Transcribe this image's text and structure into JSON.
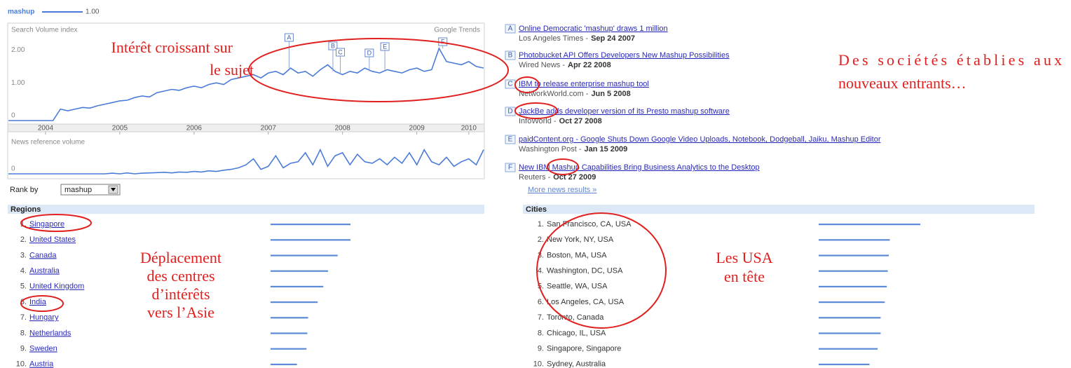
{
  "legend_value": "1.00",
  "chart_data": [
    {
      "type": "line",
      "title": "Search Volume index",
      "source": "Google Trends",
      "x": [
        2004,
        2004.1,
        2004.2,
        2004.3,
        2004.4,
        2004.5,
        2004.6,
        2004.7,
        2004.8,
        2004.9,
        2005,
        2005.1,
        2005.2,
        2005.3,
        2005.4,
        2005.5,
        2005.6,
        2005.7,
        2005.8,
        2005.9,
        2006,
        2006.1,
        2006.2,
        2006.3,
        2006.4,
        2006.5,
        2006.6,
        2006.7,
        2006.8,
        2006.9,
        2007,
        2007.1,
        2007.2,
        2007.3,
        2007.4,
        2007.5,
        2007.6,
        2007.7,
        2007.8,
        2007.9,
        2008,
        2008.1,
        2008.2,
        2008.3,
        2008.4,
        2008.5,
        2008.6,
        2008.7,
        2008.8,
        2008.9,
        2009,
        2009.1,
        2009.2,
        2009.3,
        2009.4,
        2009.5,
        2009.6,
        2009.7,
        2009.8,
        2009.9,
        2010,
        2010.1,
        2010.2,
        2010.3,
        2010.4
      ],
      "series": [
        {
          "name": "mashup",
          "color": "#4a7bd8",
          "values": [
            0,
            0,
            0,
            0,
            0,
            0,
            0,
            0.35,
            0.3,
            0.35,
            0.4,
            0.38,
            0.45,
            0.5,
            0.55,
            0.6,
            0.62,
            0.7,
            0.75,
            0.72,
            0.85,
            0.9,
            0.95,
            0.92,
            1.0,
            1.05,
            1.0,
            1.1,
            1.15,
            1.1,
            1.25,
            1.3,
            1.35,
            1.4,
            1.3,
            1.45,
            1.5,
            1.4,
            1.6,
            1.45,
            1.5,
            1.35,
            1.55,
            1.7,
            1.5,
            1.4,
            1.5,
            1.45,
            1.6,
            1.5,
            1.45,
            1.55,
            1.5,
            1.45,
            1.55,
            1.6,
            1.5,
            1.55,
            2.2,
            1.8,
            1.75,
            1.7,
            1.8,
            1.65,
            1.6
          ]
        }
      ],
      "xlim": [
        2004,
        2010.4
      ],
      "xticks": [
        {
          "value": 2004.5,
          "label": "2004"
        },
        {
          "value": 2005.5,
          "label": "2005"
        },
        {
          "value": 2006.5,
          "label": "2006"
        },
        {
          "value": 2007.5,
          "label": "2007"
        },
        {
          "value": 2008.5,
          "label": "2008"
        },
        {
          "value": 2009.5,
          "label": "2009"
        },
        {
          "value": 2010.2,
          "label": "2010"
        }
      ],
      "ylim": [
        0,
        2.5
      ],
      "yticks": [
        0,
        {
          "value": 1,
          "label": "1.00"
        },
        {
          "value": 2,
          "label": "2.00"
        }
      ],
      "grid": false,
      "markers": [
        {
          "label": "A",
          "x": 2007.78
        },
        {
          "label": "B",
          "x": 2008.37
        },
        {
          "label": "C",
          "x": 2008.47
        },
        {
          "label": "D",
          "x": 2008.86
        },
        {
          "label": "E",
          "x": 2009.07
        },
        {
          "label": "F",
          "x": 2009.85
        }
      ]
    },
    {
      "type": "line",
      "title": "News reference volume",
      "x": [
        2004,
        2004.1,
        2004.2,
        2004.3,
        2004.4,
        2004.5,
        2004.6,
        2004.7,
        2004.8,
        2004.9,
        2005,
        2005.1,
        2005.2,
        2005.3,
        2005.4,
        2005.5,
        2005.6,
        2005.7,
        2005.8,
        2005.9,
        2006,
        2006.1,
        2006.2,
        2006.3,
        2006.4,
        2006.5,
        2006.6,
        2006.7,
        2006.8,
        2006.9,
        2007,
        2007.1,
        2007.2,
        2007.3,
        2007.4,
        2007.5,
        2007.6,
        2007.7,
        2007.8,
        2007.9,
        2008,
        2008.1,
        2008.2,
        2008.3,
        2008.4,
        2008.5,
        2008.6,
        2008.7,
        2008.8,
        2008.9,
        2009,
        2009.1,
        2009.2,
        2009.3,
        2009.4,
        2009.5,
        2009.6,
        2009.7,
        2009.8,
        2009.9,
        2010,
        2010.1,
        2010.2,
        2010.3,
        2010.4
      ],
      "series": [
        {
          "color": "#4a7bd8",
          "values": [
            0,
            0,
            0,
            0,
            0,
            0,
            0,
            0,
            0,
            0,
            0,
            0,
            0,
            0,
            0.02,
            0,
            0.03,
            0,
            0.02,
            0.03,
            0.04,
            0.05,
            0.03,
            0.06,
            0.05,
            0.08,
            0.06,
            0.1,
            0.08,
            0.12,
            0.15,
            0.2,
            0.3,
            0.5,
            0.15,
            0.25,
            0.6,
            0.2,
            0.35,
            0.4,
            0.7,
            0.3,
            0.8,
            0.25,
            0.6,
            0.7,
            0.3,
            0.65,
            0.4,
            0.35,
            0.5,
            0.3,
            0.55,
            0.35,
            0.7,
            0.3,
            0.8,
            0.4,
            0.3,
            0.55,
            0.25,
            0.4,
            0.5,
            0.3,
            0.8
          ]
        }
      ],
      "xlim": [
        2004,
        2010.4
      ],
      "ylim": [
        0,
        1
      ],
      "yticks": [
        0
      ]
    }
  ],
  "news": {
    "items": [
      {
        "letter": "A",
        "title": "Online Democratic 'mashup' draws 1 million",
        "source": "Los Angeles Times -",
        "date": "Sep 24 2007"
      },
      {
        "letter": "B",
        "title": "Photobucket API Offers Developers New Mashup Possibilities",
        "source": "Wired News -",
        "date": "Apr 22 2008"
      },
      {
        "letter": "C",
        "title": "IBM to release enterprise mashup tool",
        "source": "NetworkWorld.com -",
        "date": "Jun 5 2008"
      },
      {
        "letter": "D",
        "title": "JackBe adds developer version of its Presto mashup software",
        "source": "InfoWorld -",
        "date": "Oct 27 2008"
      },
      {
        "letter": "E",
        "title": "paidContent.org - Google Shuts Down Google Video Uploads, Notebook, Dodgeball, Jaiku, Mashup Editor",
        "source": "Washington Post -",
        "date": "Jan 15 2009"
      },
      {
        "letter": "F",
        "title": "New IBM Mashup Capabilities Bring Business Analytics to the Desktop",
        "source": "Reuters -",
        "date": "Oct 27 2009"
      }
    ],
    "more": "More news results »"
  },
  "rank_by": {
    "label": "Rank by",
    "selected": "mashup"
  },
  "regions": {
    "title": "Regions",
    "rows": [
      {
        "rank": "1.",
        "name": "Singapore",
        "value": 100
      },
      {
        "rank": "2.",
        "name": "United States",
        "value": 100
      },
      {
        "rank": "3.",
        "name": "Canada",
        "value": 84
      },
      {
        "rank": "4.",
        "name": "Australia",
        "value": 72
      },
      {
        "rank": "5.",
        "name": "United Kingdom",
        "value": 66
      },
      {
        "rank": "6.",
        "name": "India",
        "value": 59
      },
      {
        "rank": "7.",
        "name": "Hungary",
        "value": 47
      },
      {
        "rank": "8.",
        "name": "Netherlands",
        "value": 46
      },
      {
        "rank": "9.",
        "name": "Sweden",
        "value": 45
      },
      {
        "rank": "10.",
        "name": "Austria",
        "value": 33
      }
    ]
  },
  "cities": {
    "title": "Cities",
    "rows": [
      {
        "rank": "1.",
        "name": "San Francisco, CA, USA",
        "value": 100
      },
      {
        "rank": "2.",
        "name": "New York, NY, USA",
        "value": 70
      },
      {
        "rank": "3.",
        "name": "Boston, MA, USA",
        "value": 69
      },
      {
        "rank": "4.",
        "name": "Washington, DC, USA",
        "value": 68
      },
      {
        "rank": "5.",
        "name": "Seattle, WA, USA",
        "value": 67
      },
      {
        "rank": "6.",
        "name": "Los Angeles, CA, USA",
        "value": 65
      },
      {
        "rank": "7.",
        "name": "Toronto, Canada",
        "value": 61
      },
      {
        "rank": "8.",
        "name": "Chicago, IL, USA",
        "value": 61
      },
      {
        "rank": "9.",
        "name": "Singapore, Singapore",
        "value": 58
      },
      {
        "rank": "10.",
        "name": "Sydney, Australia",
        "value": 50
      }
    ]
  },
  "annotations": [
    {
      "lines": [
        "Intérêt croissant sur",
        "le sujet"
      ]
    },
    {
      "lines": [
        "Des sociétés établies aux",
        "nouveaux entrants…"
      ]
    },
    {
      "lines": [
        "Déplacement",
        "des centres",
        "d’intérêts",
        "vers l’Asie"
      ]
    },
    {
      "lines": [
        "Les USA",
        "en tête"
      ]
    }
  ]
}
